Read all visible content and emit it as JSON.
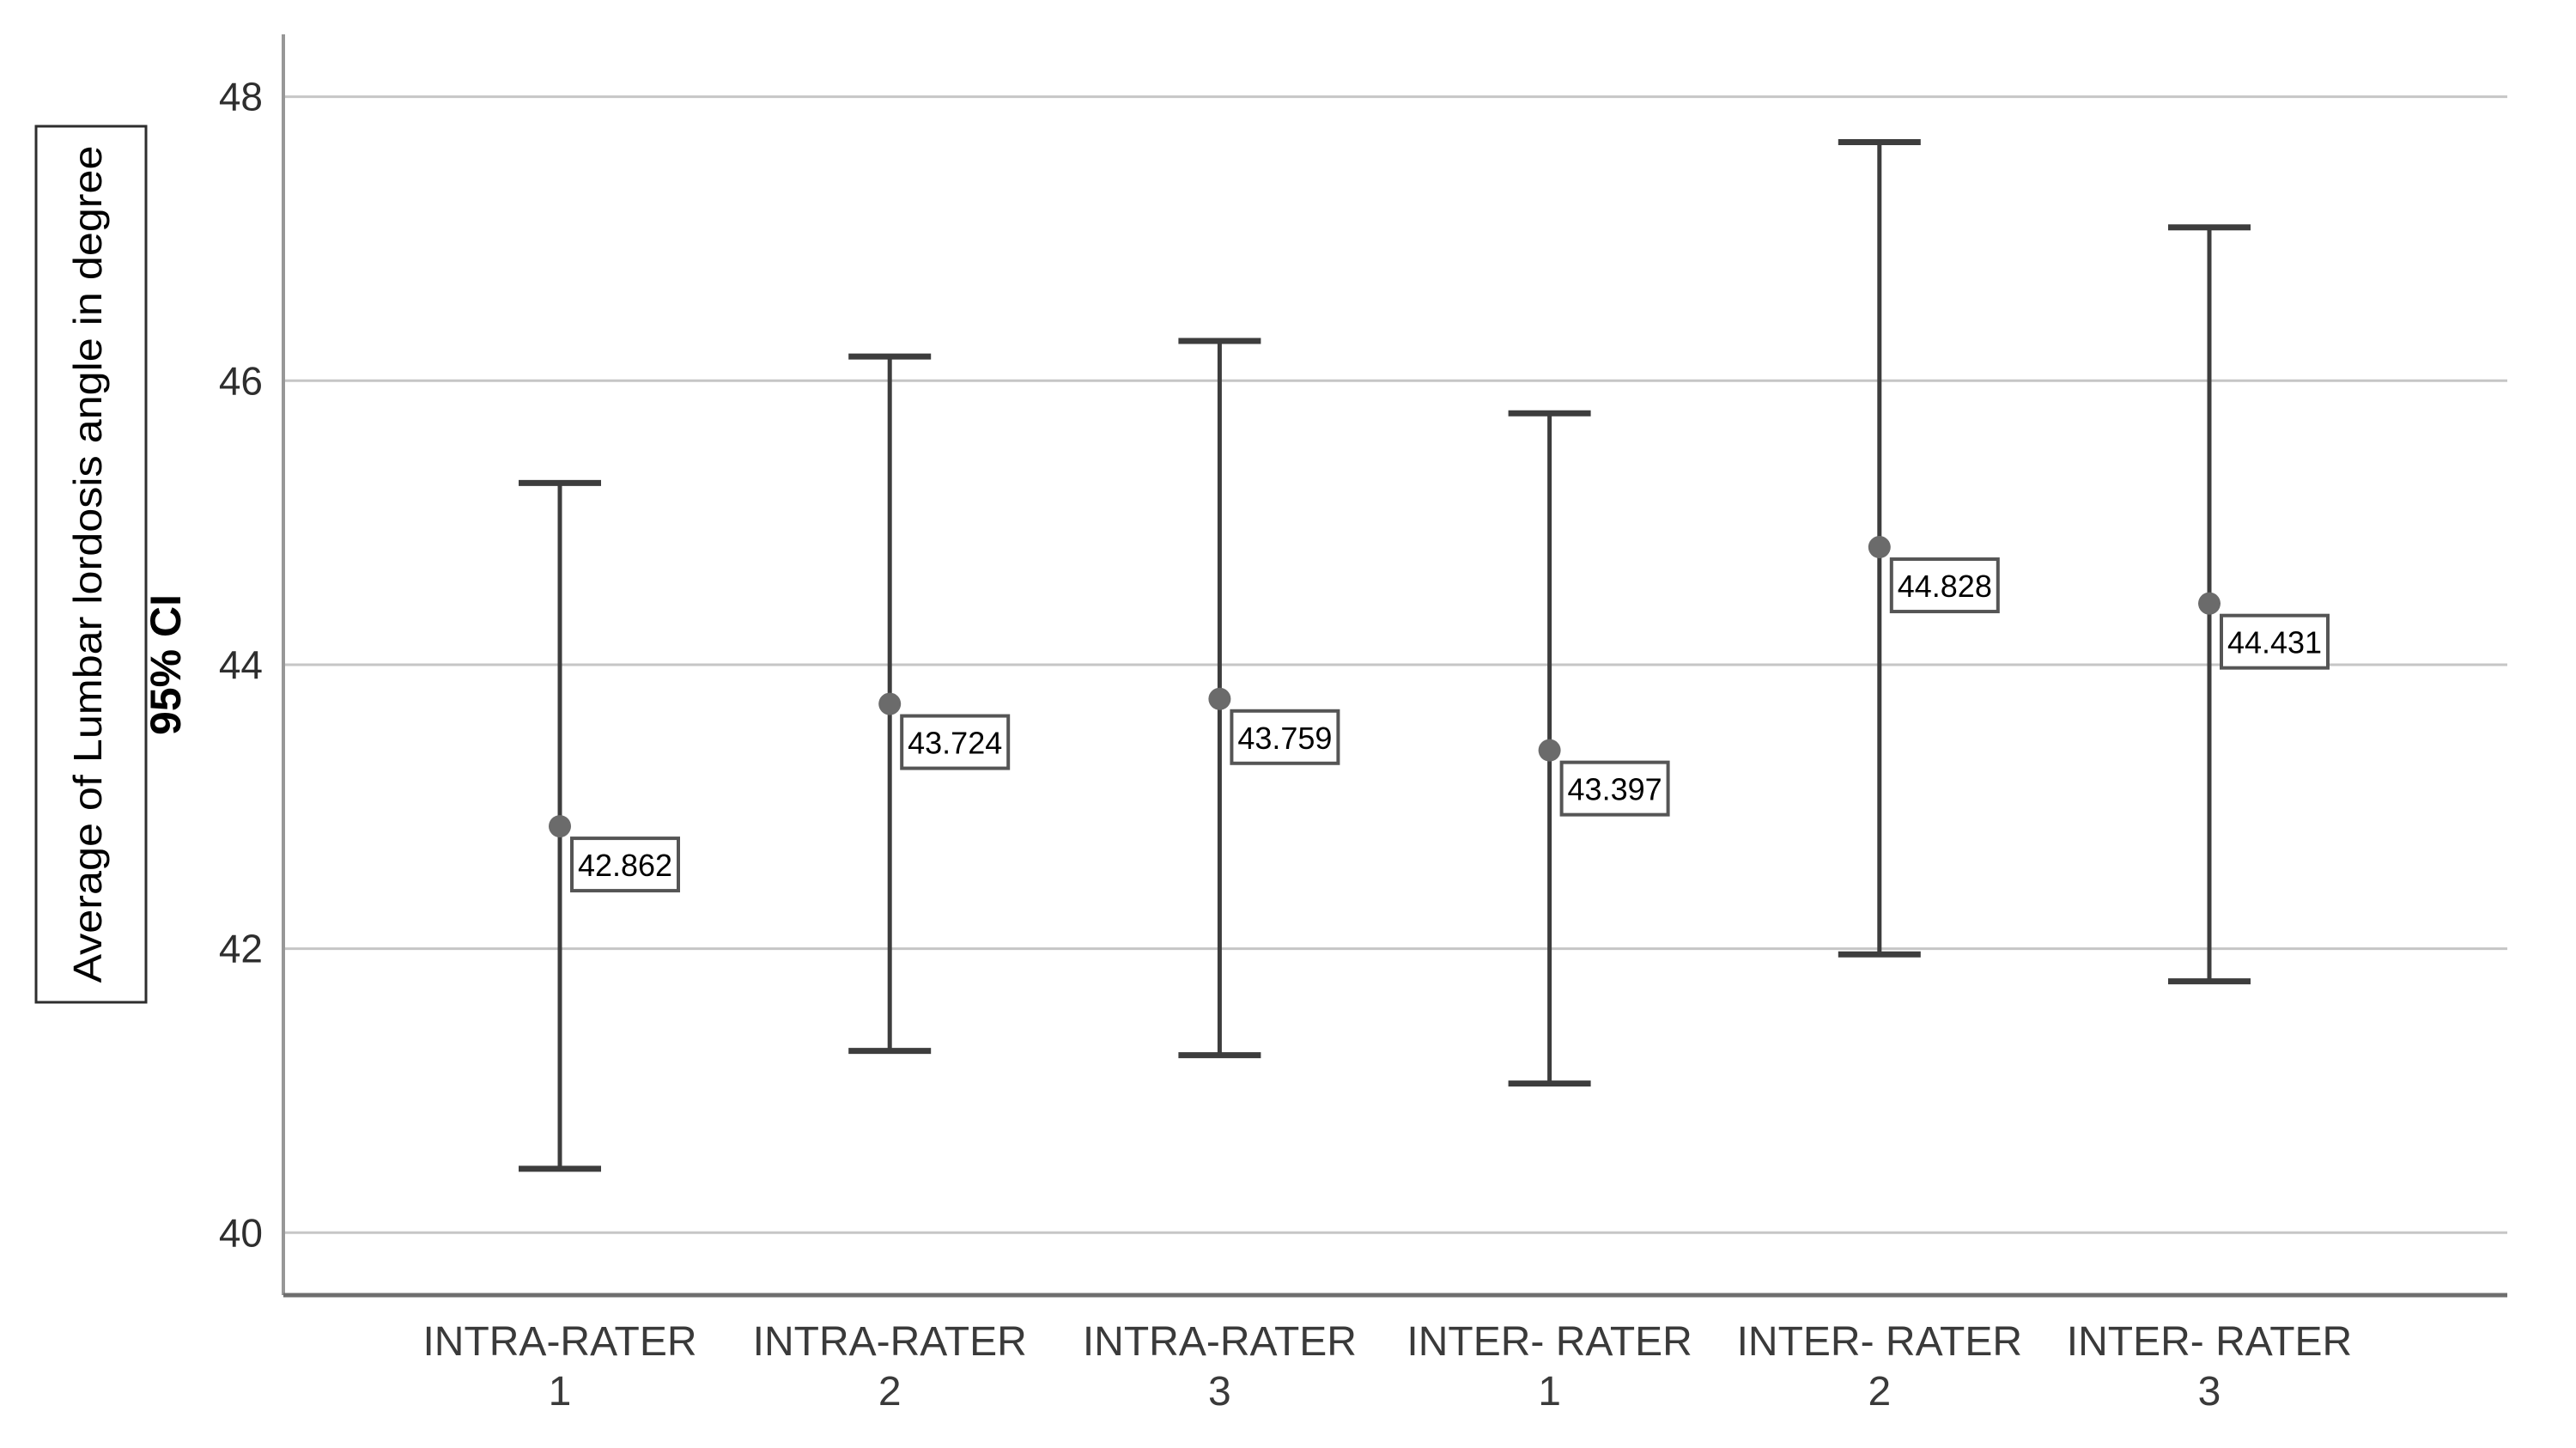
{
  "chart_data": {
    "type": "errorbar",
    "title_box": "Average of Lumbar lordosis angle in degree",
    "ylabel": "95% CI",
    "categories": [
      [
        "INTRA-RATER",
        "1"
      ],
      [
        "INTRA-RATER",
        "2"
      ],
      [
        "INTRA-RATER",
        "3"
      ],
      [
        "INTER- RATER",
        "1"
      ],
      [
        "INTER- RATER",
        "2"
      ],
      [
        "INTER- RATER",
        "3"
      ]
    ],
    "series": [
      {
        "name": "INTRA-RATER 1",
        "mean": 42.862,
        "ci_low": 40.45,
        "ci_high": 45.28
      },
      {
        "name": "INTRA-RATER 2",
        "mean": 43.724,
        "ci_low": 41.28,
        "ci_high": 46.17
      },
      {
        "name": "INTRA-RATER 3",
        "mean": 43.759,
        "ci_low": 41.25,
        "ci_high": 46.28
      },
      {
        "name": "INTER- RATER 1",
        "mean": 43.397,
        "ci_low": 41.05,
        "ci_high": 45.77
      },
      {
        "name": "INTER- RATER 2",
        "mean": 44.828,
        "ci_low": 41.96,
        "ci_high": 47.68
      },
      {
        "name": "INTER- RATER 3",
        "mean": 44.431,
        "ci_low": 41.77,
        "ci_high": 47.08
      }
    ],
    "data_labels": [
      "42.862",
      "43.724",
      "43.759",
      "43.397",
      "44.828",
      "44.431"
    ],
    "yticks": [
      "40",
      "42",
      "44",
      "46",
      "48"
    ],
    "ytick_values": [
      40,
      42,
      44,
      46,
      48
    ],
    "ylim": [
      39.56,
      48.53
    ],
    "grid": "horizontal-only",
    "legend": "none",
    "marker": "circle",
    "colors": {
      "error_bar": "#3d3d3d",
      "mean_dot": "#6b6b6b",
      "gridline": "#c6c6c6",
      "left_spine": "#979797",
      "bottom_spine": "#6e6e6e",
      "label_box_border": "#555555",
      "label_text": "#000000",
      "tick_text": "#2e2e2e",
      "category_text": "#3a3a3a",
      "title_box_border": "#2e2e2e",
      "background": "#ffffff"
    }
  }
}
